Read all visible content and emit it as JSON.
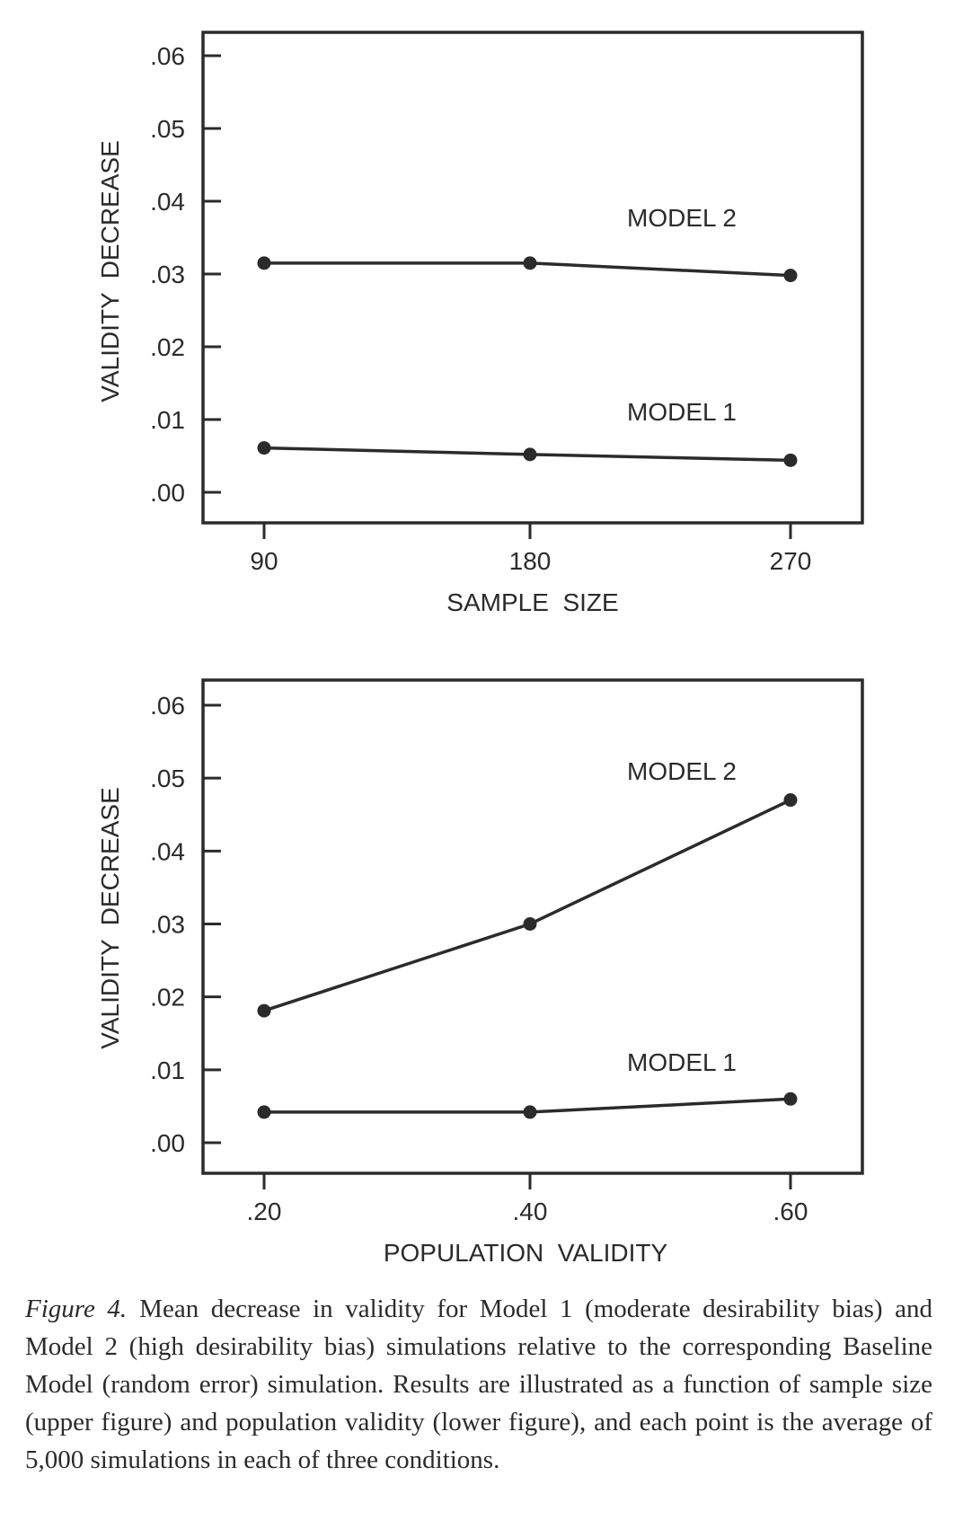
{
  "chart_data": [
    {
      "type": "line",
      "x": [
        "90",
        "180",
        "270"
      ],
      "xlabel": "SAMPLE  SIZE",
      "ylabel": "VALIDITY  DECREASE",
      "yticks": [
        ".00",
        ".01",
        ".02",
        ".03",
        ".04",
        ".05",
        ".06"
      ],
      "ylim": [
        0,
        0.06
      ],
      "series": [
        {
          "name": "MODEL 2",
          "values": [
            0.0315,
            0.0315,
            0.0298
          ]
        },
        {
          "name": "MODEL 1",
          "values": [
            0.0061,
            0.0052,
            0.0044
          ]
        }
      ]
    },
    {
      "type": "line",
      "x": [
        ".20",
        ".40",
        ".60"
      ],
      "xlabel": "POPULATION  VALIDITY",
      "ylabel": "VALIDITY  DECREASE",
      "yticks": [
        ".00",
        ".01",
        ".02",
        ".03",
        ".04",
        ".05",
        ".06"
      ],
      "ylim": [
        0,
        0.06
      ],
      "series": [
        {
          "name": "MODEL 2",
          "values": [
            0.0181,
            0.03,
            0.047
          ]
        },
        {
          "name": "MODEL 1",
          "values": [
            0.0042,
            0.0042,
            0.006
          ]
        }
      ]
    }
  ],
  "caption": {
    "label": "Figure 4.",
    "text": "Mean decrease in validity for Model 1 (moderate desirability bias) and Model 2 (high desirability bias) simulations relative to the corresponding Baseline Model (random error) simulation. Results are illustrated as a function of sample size (upper figure) and population validity (lower figure), and each point is the average of 5,000 simulations in each of three conditions."
  },
  "colors": {
    "ink": "#2b2b2b"
  }
}
